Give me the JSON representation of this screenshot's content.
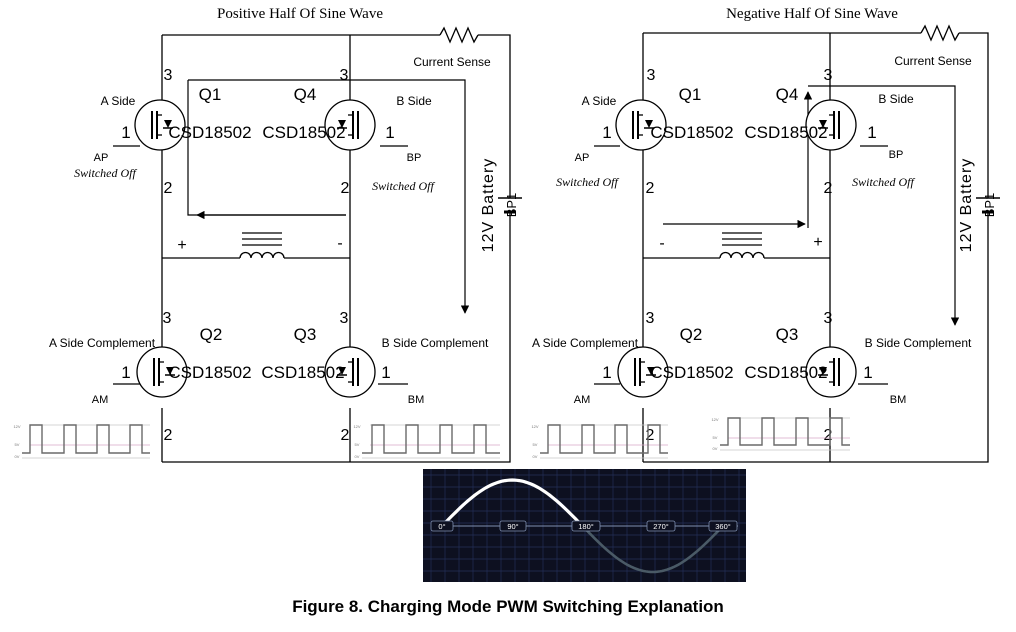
{
  "left": {
    "title": "Positive Half Of Sine Wave",
    "current_sense": "Current Sense",
    "battery": "12V Battery",
    "battery_ref": "BP1",
    "polarity_left": "+",
    "polarity_right": "-",
    "q1": {
      "name": "Q1",
      "part": "CSD18502",
      "pin_top": "3",
      "pin_gate": "1",
      "pin_bottom": "2",
      "side": "A Side",
      "signal": "AP",
      "state": "Switched Off"
    },
    "q4": {
      "name": "Q4",
      "part": "CSD18502",
      "pin_top": "3",
      "pin_gate": "1",
      "pin_bottom": "2",
      "side": "B Side",
      "signal": "BP",
      "state": "Switched Off"
    },
    "q2": {
      "name": "Q2",
      "part": "CSD18502",
      "pin_top": "3",
      "pin_gate": "1",
      "pin_bottom": "2",
      "side": "A Side Complement",
      "signal": "AM"
    },
    "q3": {
      "name": "Q3",
      "part": "CSD18502",
      "pin_top": "3",
      "pin_gate": "1",
      "pin_bottom": "2",
      "side": "B Side Complement",
      "signal": "BM"
    },
    "pwm_labels": [
      "12V",
      "5V",
      "0V"
    ]
  },
  "right": {
    "title": "Negative Half Of Sine Wave",
    "current_sense": "Current Sense",
    "battery": "12V Battery",
    "battery_ref": "BP1",
    "polarity_left": "-",
    "polarity_right": "+",
    "q1": {
      "name": "Q1",
      "part": "CSD18502",
      "pin_top": "3",
      "pin_gate": "1",
      "pin_bottom": "2",
      "side": "A Side",
      "signal": "AP",
      "state": "Switched Off"
    },
    "q4": {
      "name": "Q4",
      "part": "CSD18502",
      "pin_top": "3",
      "pin_gate": "1",
      "pin_bottom": "2",
      "side": "B Side",
      "signal": "BP",
      "state": "Switched Off"
    },
    "q2": {
      "name": "Q2",
      "part": "CSD18502",
      "pin_top": "3",
      "pin_gate": "1",
      "pin_bottom": "2",
      "side": "A Side Complement",
      "signal": "AM"
    },
    "q3": {
      "name": "Q3",
      "part": "CSD18502",
      "pin_top": "3",
      "pin_gate": "1",
      "pin_bottom": "2",
      "side": "B Side Complement",
      "signal": "BM"
    },
    "pwm_labels": [
      "12V",
      "5V",
      "0V"
    ]
  },
  "sine": {
    "ticks": [
      "0°",
      "90°",
      "180°",
      "270°",
      "360°"
    ],
    "colors": {
      "background": "#0d1020",
      "grid": "#243058",
      "positive": "#ffffff",
      "negative": "#4a5a66"
    }
  },
  "caption": "Figure 8. Charging Mode PWM Switching Explanation"
}
